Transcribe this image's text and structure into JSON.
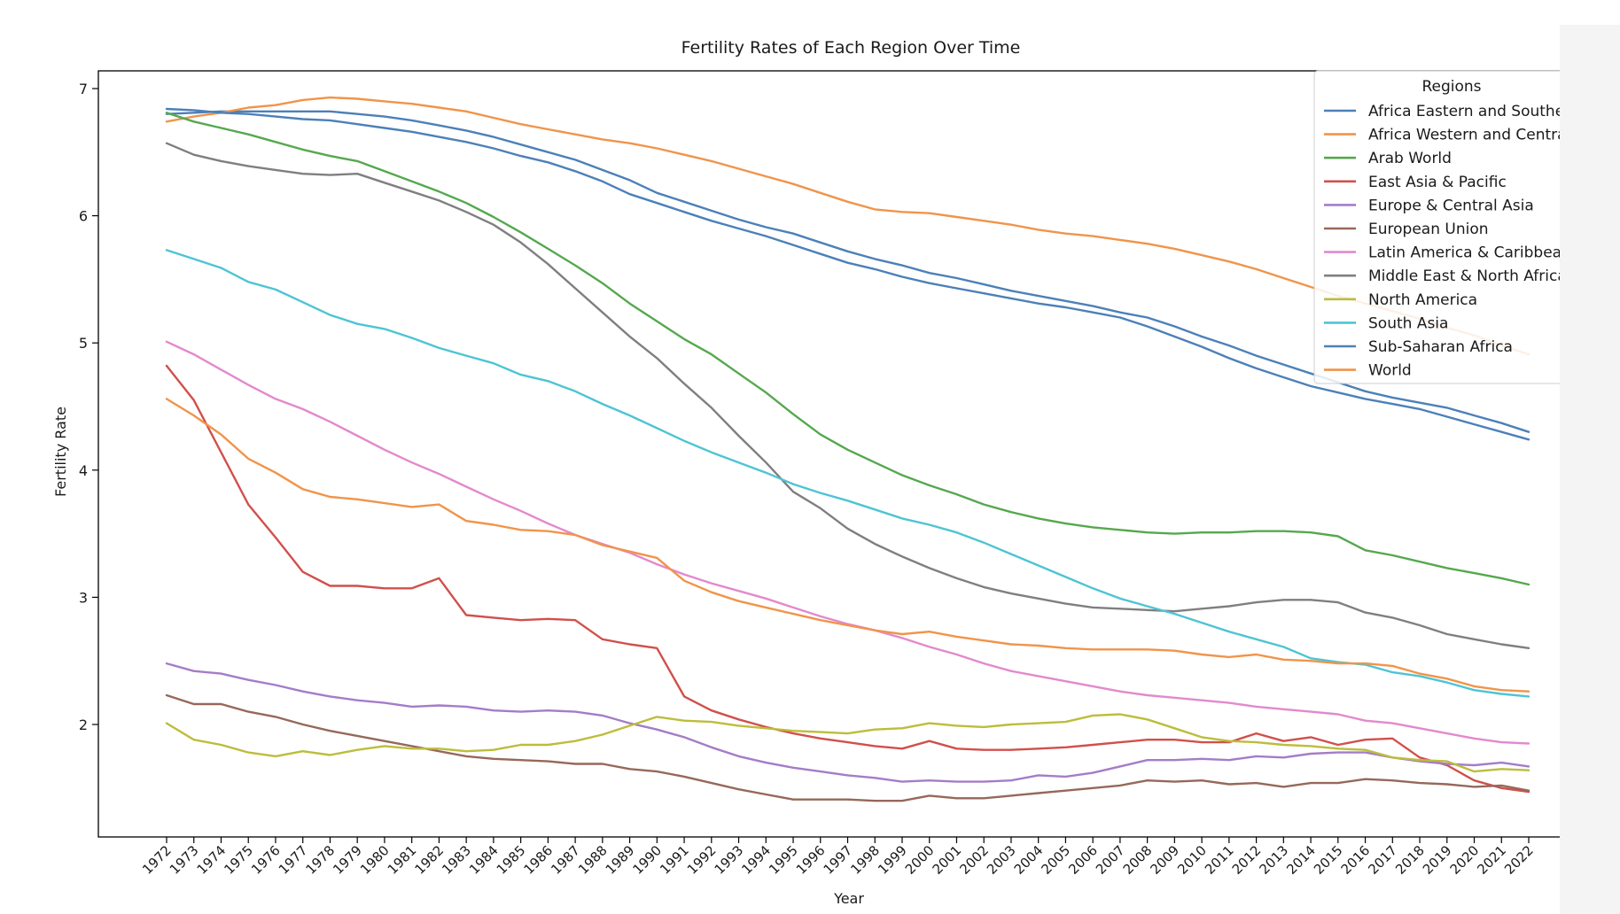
{
  "chart_data": {
    "type": "line",
    "title": "Fertility Rates of Each Region Over Time",
    "xlabel": "Year",
    "ylabel": "Fertility Rate",
    "ylim": [
      1.1,
      7.3
    ],
    "yticks": [
      "2",
      "3",
      "4",
      "5",
      "6",
      "7"
    ],
    "legend_title": "Regions",
    "legend_position": "top-right",
    "categories": [
      "1972",
      "1973",
      "1974",
      "1975",
      "1976",
      "1977",
      "1978",
      "1979",
      "1980",
      "1981",
      "1982",
      "1983",
      "1984",
      "1985",
      "1986",
      "1987",
      "1988",
      "1989",
      "1990",
      "1991",
      "1992",
      "1993",
      "1994",
      "1995",
      "1996",
      "1997",
      "1998",
      "1999",
      "2000",
      "2001",
      "2002",
      "2003",
      "2004",
      "2005",
      "2006",
      "2007",
      "2008",
      "2009",
      "2010",
      "2011",
      "2012",
      "2013",
      "2014",
      "2015",
      "2016",
      "2017",
      "2018",
      "2019",
      "2020",
      "2021",
      "2022"
    ],
    "series": [
      {
        "name": "Africa Eastern and Southern",
        "color": "#4c80b8",
        "values": [
          6.8,
          6.81,
          6.82,
          6.82,
          6.82,
          6.82,
          6.82,
          6.8,
          6.78,
          6.75,
          6.71,
          6.67,
          6.62,
          6.56,
          6.5,
          6.44,
          6.36,
          6.28,
          6.18,
          6.11,
          6.04,
          5.97,
          5.91,
          5.86,
          5.79,
          5.72,
          5.66,
          5.61,
          5.55,
          5.51,
          5.46,
          5.41,
          5.37,
          5.33,
          5.29,
          5.24,
          5.2,
          5.13,
          5.05,
          4.98,
          4.9,
          4.83,
          4.76,
          4.69,
          4.62,
          4.57,
          4.53,
          4.49,
          4.43,
          4.37,
          4.3
        ]
      },
      {
        "name": "Africa Western and Central",
        "color": "#f0944a",
        "values": [
          6.74,
          6.78,
          6.81,
          6.85,
          6.87,
          6.91,
          6.93,
          6.92,
          6.9,
          6.88,
          6.85,
          6.82,
          6.77,
          6.72,
          6.68,
          6.64,
          6.6,
          6.57,
          6.53,
          6.48,
          6.43,
          6.37,
          6.31,
          6.25,
          6.18,
          6.11,
          6.05,
          6.03,
          6.02,
          5.99,
          5.96,
          5.93,
          5.89,
          5.86,
          5.84,
          5.81,
          5.78,
          5.74,
          5.69,
          5.64,
          5.58,
          5.51,
          5.44,
          5.37,
          5.31,
          5.25,
          5.19,
          5.12,
          5.06,
          4.98,
          4.91
        ]
      },
      {
        "name": "Arab World",
        "color": "#55a84e",
        "values": [
          6.81,
          6.74,
          6.69,
          6.64,
          6.58,
          6.52,
          6.47,
          6.43,
          6.35,
          6.27,
          6.19,
          6.1,
          5.99,
          5.87,
          5.74,
          5.61,
          5.47,
          5.31,
          5.17,
          5.03,
          4.91,
          4.76,
          4.61,
          4.44,
          4.28,
          4.16,
          4.06,
          3.96,
          3.88,
          3.81,
          3.73,
          3.67,
          3.62,
          3.58,
          3.55,
          3.53,
          3.51,
          3.5,
          3.51,
          3.51,
          3.52,
          3.52,
          3.51,
          3.48,
          3.37,
          3.33,
          3.28,
          3.23,
          3.19,
          3.15,
          3.1
        ]
      },
      {
        "name": "East Asia & Pacific",
        "color": "#d0504c",
        "values": [
          4.82,
          4.55,
          4.14,
          3.73,
          3.47,
          3.2,
          3.09,
          3.09,
          3.07,
          3.07,
          3.15,
          2.86,
          2.84,
          2.82,
          2.83,
          2.82,
          2.67,
          2.63,
          2.6,
          2.22,
          2.11,
          2.04,
          1.98,
          1.93,
          1.89,
          1.86,
          1.83,
          1.81,
          1.87,
          1.81,
          1.8,
          1.8,
          1.81,
          1.82,
          1.84,
          1.86,
          1.88,
          1.88,
          1.86,
          1.86,
          1.93,
          1.87,
          1.9,
          1.84,
          1.88,
          1.89,
          1.74,
          1.68,
          1.56,
          1.5,
          1.47
        ]
      },
      {
        "name": "Europe & Central Asia",
        "color": "#a47cc8",
        "values": [
          2.48,
          2.42,
          2.4,
          2.35,
          2.31,
          2.26,
          2.22,
          2.19,
          2.17,
          2.14,
          2.15,
          2.14,
          2.11,
          2.1,
          2.11,
          2.1,
          2.07,
          2.01,
          1.96,
          1.9,
          1.82,
          1.75,
          1.7,
          1.66,
          1.63,
          1.6,
          1.58,
          1.55,
          1.56,
          1.55,
          1.55,
          1.56,
          1.6,
          1.59,
          1.62,
          1.67,
          1.72,
          1.72,
          1.73,
          1.72,
          1.75,
          1.74,
          1.77,
          1.78,
          1.78,
          1.74,
          1.71,
          1.69,
          1.68,
          1.7,
          1.67
        ]
      },
      {
        "name": "European Union",
        "color": "#96685a",
        "values": [
          2.23,
          2.16,
          2.16,
          2.1,
          2.06,
          2.0,
          1.95,
          1.91,
          1.87,
          1.83,
          1.79,
          1.75,
          1.73,
          1.72,
          1.71,
          1.69,
          1.69,
          1.65,
          1.63,
          1.59,
          1.54,
          1.49,
          1.45,
          1.41,
          1.41,
          1.41,
          1.4,
          1.4,
          1.44,
          1.42,
          1.42,
          1.44,
          1.46,
          1.48,
          1.5,
          1.52,
          1.56,
          1.55,
          1.56,
          1.53,
          1.54,
          1.51,
          1.54,
          1.54,
          1.57,
          1.56,
          1.54,
          1.53,
          1.51,
          1.52,
          1.48
        ]
      },
      {
        "name": "Latin America & Caribbean",
        "color": "#e389cd",
        "values": [
          5.01,
          4.91,
          4.79,
          4.67,
          4.56,
          4.48,
          4.38,
          4.27,
          4.16,
          4.06,
          3.97,
          3.87,
          3.77,
          3.68,
          3.58,
          3.49,
          3.42,
          3.35,
          3.26,
          3.18,
          3.11,
          3.05,
          2.99,
          2.92,
          2.85,
          2.79,
          2.74,
          2.68,
          2.61,
          2.55,
          2.48,
          2.42,
          2.38,
          2.34,
          2.3,
          2.26,
          2.23,
          2.21,
          2.19,
          2.17,
          2.14,
          2.12,
          2.1,
          2.08,
          2.03,
          2.01,
          1.97,
          1.93,
          1.89,
          1.86,
          1.85
        ]
      },
      {
        "name": "Middle East & North Africa",
        "color": "#7f7f7f",
        "values": [
          6.57,
          6.48,
          6.43,
          6.39,
          6.36,
          6.33,
          6.32,
          6.33,
          6.26,
          6.19,
          6.12,
          6.03,
          5.93,
          5.79,
          5.62,
          5.43,
          5.24,
          5.05,
          4.88,
          4.68,
          4.49,
          4.27,
          4.06,
          3.83,
          3.7,
          3.54,
          3.42,
          3.32,
          3.23,
          3.15,
          3.08,
          3.03,
          2.99,
          2.95,
          2.92,
          2.91,
          2.9,
          2.89,
          2.91,
          2.93,
          2.96,
          2.98,
          2.98,
          2.96,
          2.88,
          2.84,
          2.78,
          2.71,
          2.67,
          2.63,
          2.6
        ]
      },
      {
        "name": "North America",
        "color": "#bcbd3c",
        "values": [
          2.01,
          1.88,
          1.84,
          1.78,
          1.75,
          1.79,
          1.76,
          1.8,
          1.83,
          1.81,
          1.81,
          1.79,
          1.8,
          1.84,
          1.84,
          1.87,
          1.92,
          1.99,
          2.06,
          2.03,
          2.02,
          1.99,
          1.97,
          1.95,
          1.94,
          1.93,
          1.96,
          1.97,
          2.01,
          1.99,
          1.98,
          2.0,
          2.01,
          2.02,
          2.07,
          2.08,
          2.04,
          1.97,
          1.9,
          1.87,
          1.86,
          1.84,
          1.83,
          1.81,
          1.8,
          1.74,
          1.72,
          1.71,
          1.63,
          1.65,
          1.64
        ]
      },
      {
        "name": "South Asia",
        "color": "#4dc4d4",
        "values": [
          5.73,
          5.66,
          5.59,
          5.48,
          5.42,
          5.32,
          5.22,
          5.15,
          5.11,
          5.04,
          4.96,
          4.9,
          4.84,
          4.75,
          4.7,
          4.62,
          4.52,
          4.43,
          4.33,
          4.23,
          4.14,
          4.06,
          3.98,
          3.89,
          3.82,
          3.76,
          3.69,
          3.62,
          3.57,
          3.51,
          3.43,
          3.34,
          3.25,
          3.16,
          3.07,
          2.99,
          2.93,
          2.87,
          2.8,
          2.73,
          2.67,
          2.61,
          2.52,
          2.49,
          2.47,
          2.41,
          2.38,
          2.33,
          2.27,
          2.24,
          2.22
        ]
      },
      {
        "name": "Sub-Saharan Africa",
        "color": "#4c80b8",
        "values": [
          6.84,
          6.83,
          6.81,
          6.8,
          6.78,
          6.76,
          6.75,
          6.72,
          6.69,
          6.66,
          6.62,
          6.58,
          6.53,
          6.47,
          6.42,
          6.35,
          6.27,
          6.17,
          6.1,
          6.03,
          5.96,
          5.9,
          5.84,
          5.77,
          5.7,
          5.63,
          5.58,
          5.52,
          5.47,
          5.43,
          5.39,
          5.35,
          5.31,
          5.28,
          5.24,
          5.2,
          5.13,
          5.05,
          4.97,
          4.88,
          4.8,
          4.73,
          4.66,
          4.61,
          4.56,
          4.52,
          4.48,
          4.42,
          4.36,
          4.3,
          4.24
        ]
      },
      {
        "name": "World",
        "color": "#f0944a",
        "values": [
          4.56,
          4.43,
          4.28,
          4.09,
          3.98,
          3.85,
          3.79,
          3.77,
          3.74,
          3.71,
          3.73,
          3.6,
          3.57,
          3.53,
          3.52,
          3.49,
          3.41,
          3.36,
          3.31,
          3.13,
          3.04,
          2.97,
          2.92,
          2.87,
          2.82,
          2.78,
          2.74,
          2.71,
          2.73,
          2.69,
          2.66,
          2.63,
          2.62,
          2.6,
          2.59,
          2.59,
          2.59,
          2.58,
          2.55,
          2.53,
          2.55,
          2.51,
          2.5,
          2.48,
          2.48,
          2.46,
          2.4,
          2.36,
          2.3,
          2.27,
          2.26
        ]
      }
    ]
  }
}
